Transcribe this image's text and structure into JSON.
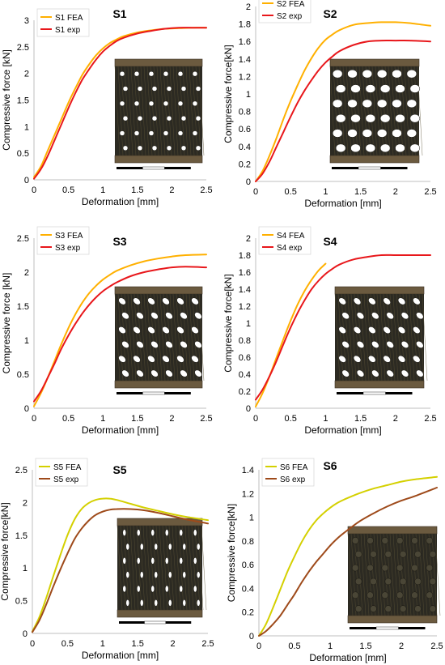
{
  "chart_data": [
    {
      "type": "line",
      "title": "S1",
      "xlabel": "Deformation [mm]",
      "ylabel": "Compressive force [kN]",
      "xlim": [
        0,
        2.5
      ],
      "ylim": [
        0,
        3
      ],
      "xticks": [
        "0",
        "0.5",
        "1",
        "1.5",
        "2",
        "2.5"
      ],
      "yticks": [
        "0",
        "0.5",
        "1",
        "1.5",
        "2",
        "2.5",
        "3"
      ],
      "legend": "top-left",
      "grid": false,
      "inset": "lattice-specimen-micrograph",
      "series": [
        {
          "name": "S1 FEA",
          "color": "#FFB000",
          "x": [
            0,
            0.1,
            0.2,
            0.3,
            0.4,
            0.5,
            0.6,
            0.7,
            0.8,
            0.9,
            1.0,
            1.1,
            1.2,
            1.3,
            1.5,
            1.7,
            1.9,
            2.1,
            2.3,
            2.5
          ],
          "y": [
            0.05,
            0.25,
            0.55,
            0.85,
            1.15,
            1.45,
            1.72,
            1.97,
            2.17,
            2.34,
            2.47,
            2.57,
            2.64,
            2.7,
            2.77,
            2.81,
            2.84,
            2.85,
            2.86,
            2.86
          ]
        },
        {
          "name": "S1 exp",
          "color": "#E8171B",
          "x": [
            0,
            0.1,
            0.2,
            0.3,
            0.4,
            0.5,
            0.6,
            0.7,
            0.8,
            0.9,
            1.0,
            1.1,
            1.2,
            1.3,
            1.5,
            1.7,
            1.9,
            2.1,
            2.3,
            2.5
          ],
          "y": [
            0.02,
            0.2,
            0.45,
            0.75,
            1.05,
            1.35,
            1.63,
            1.88,
            2.08,
            2.26,
            2.41,
            2.52,
            2.61,
            2.67,
            2.75,
            2.8,
            2.84,
            2.86,
            2.86,
            2.86
          ]
        }
      ]
    },
    {
      "type": "line",
      "title": "S2",
      "xlabel": "Deformation [mm]",
      "ylabel": "Compressive force[kN]",
      "xlim": [
        0,
        2.5
      ],
      "ylim": [
        0,
        2
      ],
      "xticks": [
        "0",
        "0.5",
        "1",
        "1.5",
        "2",
        "2.5"
      ],
      "yticks": [
        "0",
        "0.2",
        "0.4",
        "0.6",
        "0.8",
        "1",
        "1.2",
        "1.4",
        "1.6",
        "1.8",
        "2"
      ],
      "legend": "top-left",
      "grid": false,
      "inset": "lattice-specimen-micrograph",
      "series": [
        {
          "name": "S2 FEA",
          "color": "#FFB000",
          "x": [
            0,
            0.1,
            0.2,
            0.3,
            0.4,
            0.5,
            0.6,
            0.7,
            0.8,
            0.9,
            1.0,
            1.1,
            1.2,
            1.4,
            1.6,
            1.8,
            2.0,
            2.2,
            2.5
          ],
          "y": [
            0.0,
            0.12,
            0.3,
            0.5,
            0.72,
            0.92,
            1.1,
            1.27,
            1.41,
            1.53,
            1.62,
            1.68,
            1.73,
            1.79,
            1.81,
            1.82,
            1.82,
            1.81,
            1.78
          ]
        },
        {
          "name": "S2 exp",
          "color": "#E8171B",
          "x": [
            0,
            0.1,
            0.2,
            0.3,
            0.4,
            0.5,
            0.6,
            0.7,
            0.8,
            0.9,
            1.0,
            1.1,
            1.2,
            1.4,
            1.6,
            1.8,
            2.0,
            2.2,
            2.5
          ],
          "y": [
            0.0,
            0.09,
            0.23,
            0.4,
            0.57,
            0.74,
            0.9,
            1.04,
            1.16,
            1.27,
            1.36,
            1.43,
            1.49,
            1.56,
            1.6,
            1.61,
            1.61,
            1.61,
            1.6
          ]
        }
      ]
    },
    {
      "type": "line",
      "title": "S3",
      "xlabel": "Deformation [mm]",
      "ylabel": "Compressive force [kN]",
      "xlim": [
        0,
        2.5
      ],
      "ylim": [
        0,
        2.5
      ],
      "xticks": [
        "0",
        "0.5",
        "1",
        "1.5",
        "2",
        "2.5"
      ],
      "yticks": [
        "0",
        "0.5",
        "1",
        "1.5",
        "2",
        "2.5"
      ],
      "legend": "top-left",
      "grid": false,
      "inset": "lattice-specimen-micrograph",
      "series": [
        {
          "name": "S3 FEA",
          "color": "#FFB000",
          "x": [
            0,
            0.1,
            0.2,
            0.3,
            0.4,
            0.5,
            0.6,
            0.7,
            0.8,
            0.9,
            1.0,
            1.1,
            1.2,
            1.4,
            1.6,
            1.8,
            2.0,
            2.2,
            2.5
          ],
          "y": [
            0.03,
            0.22,
            0.45,
            0.7,
            0.95,
            1.18,
            1.38,
            1.55,
            1.69,
            1.8,
            1.89,
            1.96,
            2.02,
            2.1,
            2.16,
            2.2,
            2.23,
            2.25,
            2.26
          ]
        },
        {
          "name": "S3 exp",
          "color": "#E8171B",
          "x": [
            0,
            0.1,
            0.2,
            0.3,
            0.4,
            0.5,
            0.6,
            0.7,
            0.8,
            0.9,
            1.0,
            1.1,
            1.2,
            1.4,
            1.6,
            1.8,
            2.0,
            2.2,
            2.5
          ],
          "y": [
            0.1,
            0.25,
            0.45,
            0.66,
            0.88,
            1.07,
            1.24,
            1.39,
            1.52,
            1.63,
            1.72,
            1.79,
            1.85,
            1.94,
            2.0,
            2.04,
            2.07,
            2.08,
            2.07
          ]
        }
      ]
    },
    {
      "type": "line",
      "title": "S4",
      "xlabel": "Deformation [mm]",
      "ylabel": "Compressive force[kN]",
      "xlim": [
        0,
        2.5
      ],
      "ylim": [
        0,
        2
      ],
      "xticks": [
        "0",
        "0.5",
        "1",
        "1.5",
        "2",
        "2.5"
      ],
      "yticks": [
        "0",
        "0.2",
        "0.4",
        "0.6",
        "0.8",
        "1",
        "1.2",
        "1.4",
        "1.6",
        "1.8",
        "2"
      ],
      "legend": "top-left",
      "grid": false,
      "inset": "lattice-specimen-micrograph",
      "series": [
        {
          "name": "S4 FEA",
          "color": "#FFB000",
          "x": [
            0,
            0.1,
            0.2,
            0.3,
            0.4,
            0.5,
            0.6,
            0.7,
            0.8,
            0.9,
            1.0
          ],
          "y": [
            0.02,
            0.18,
            0.38,
            0.6,
            0.82,
            1.03,
            1.22,
            1.38,
            1.51,
            1.62,
            1.7
          ]
        },
        {
          "name": "S4 exp",
          "color": "#E8171B",
          "x": [
            0,
            0.1,
            0.2,
            0.3,
            0.4,
            0.5,
            0.6,
            0.7,
            0.8,
            0.9,
            1.0,
            1.1,
            1.2,
            1.4,
            1.6,
            1.8,
            2.0,
            2.2,
            2.5
          ],
          "y": [
            0.1,
            0.22,
            0.38,
            0.56,
            0.76,
            0.95,
            1.12,
            1.27,
            1.4,
            1.5,
            1.58,
            1.64,
            1.69,
            1.75,
            1.78,
            1.8,
            1.8,
            1.8,
            1.8
          ]
        }
      ]
    },
    {
      "type": "line",
      "title": "S5",
      "xlabel": "Deformation [mm]",
      "ylabel": "Compressive force[kN]",
      "xlim": [
        0,
        2.5
      ],
      "ylim": [
        0,
        2.5
      ],
      "xticks": [
        "0",
        "0.5",
        "1",
        "1.5",
        "2",
        "2.5"
      ],
      "yticks": [
        "0",
        "0.5",
        "1",
        "1.5",
        "2",
        "2.5"
      ],
      "legend": "top-left",
      "grid": false,
      "inset": "lattice-specimen-micrograph",
      "series": [
        {
          "name": "S5 FEA",
          "color": "#D4D000",
          "x": [
            0,
            0.1,
            0.2,
            0.3,
            0.4,
            0.5,
            0.6,
            0.7,
            0.8,
            0.9,
            1.0,
            1.1,
            1.2,
            1.4,
            1.6,
            1.8,
            2.0,
            2.2,
            2.5
          ],
          "y": [
            0.03,
            0.25,
            0.55,
            0.88,
            1.2,
            1.5,
            1.74,
            1.9,
            1.99,
            2.04,
            2.06,
            2.06,
            2.04,
            1.98,
            1.92,
            1.87,
            1.82,
            1.78,
            1.73
          ]
        },
        {
          "name": "S5 exp",
          "color": "#9E4A1A",
          "x": [
            0,
            0.1,
            0.2,
            0.3,
            0.4,
            0.5,
            0.6,
            0.7,
            0.8,
            0.9,
            1.0,
            1.1,
            1.2,
            1.4,
            1.6,
            1.8,
            2.0,
            2.2,
            2.5
          ],
          "y": [
            0.02,
            0.2,
            0.45,
            0.72,
            0.98,
            1.22,
            1.44,
            1.6,
            1.72,
            1.81,
            1.86,
            1.89,
            1.9,
            1.9,
            1.88,
            1.84,
            1.79,
            1.74,
            1.68
          ]
        }
      ]
    },
    {
      "type": "line",
      "title": "S6",
      "xlabel": "Deformation [mm]",
      "ylabel": "Compressive force[kN]",
      "xlim": [
        0,
        2.5
      ],
      "ylim": [
        0,
        1.4
      ],
      "xticks": [
        "0",
        "0.5",
        "1",
        "1.5",
        "2",
        "2.5"
      ],
      "yticks": [
        "0",
        "0.2",
        "0.4",
        "0.6",
        "0.8",
        "1",
        "1.2",
        "1.4"
      ],
      "legend": "top-left",
      "grid": false,
      "inset": "lattice-specimen-micrograph",
      "series": [
        {
          "name": "S6 FEA",
          "color": "#D4D000",
          "x": [
            0,
            0.1,
            0.2,
            0.3,
            0.4,
            0.5,
            0.6,
            0.7,
            0.8,
            0.9,
            1.0,
            1.1,
            1.2,
            1.4,
            1.6,
            1.8,
            2.0,
            2.2,
            2.5
          ],
          "y": [
            0.0,
            0.1,
            0.24,
            0.39,
            0.54,
            0.67,
            0.79,
            0.89,
            0.97,
            1.03,
            1.08,
            1.12,
            1.15,
            1.2,
            1.24,
            1.27,
            1.3,
            1.32,
            1.34
          ]
        },
        {
          "name": "S6 exp",
          "color": "#9E4A1A",
          "x": [
            0,
            0.1,
            0.2,
            0.3,
            0.4,
            0.5,
            0.6,
            0.7,
            0.8,
            0.9,
            1.0,
            1.1,
            1.2,
            1.4,
            1.6,
            1.8,
            2.0,
            2.2,
            2.5
          ],
          "y": [
            0.0,
            0.04,
            0.1,
            0.17,
            0.26,
            0.35,
            0.45,
            0.54,
            0.62,
            0.69,
            0.76,
            0.82,
            0.87,
            0.96,
            1.03,
            1.09,
            1.14,
            1.18,
            1.25
          ]
        }
      ]
    }
  ]
}
